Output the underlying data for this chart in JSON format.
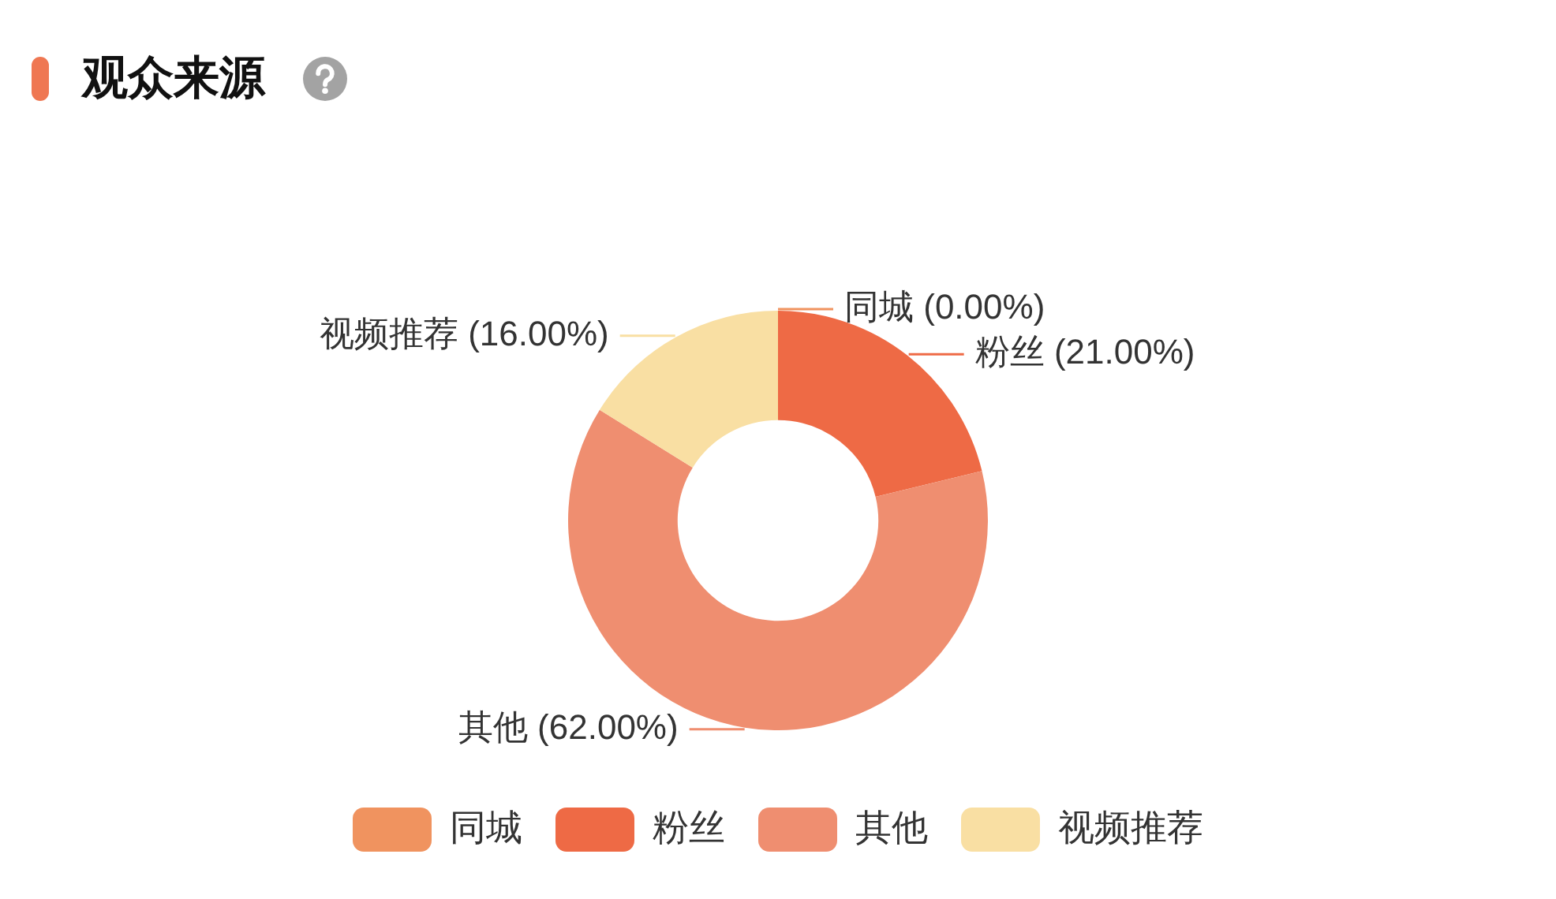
{
  "chart_data": {
    "type": "donut",
    "title": "观众来源",
    "categories": [
      "同城",
      "粉丝",
      "其他",
      "视频推荐"
    ],
    "values": [
      0,
      21,
      62,
      16
    ],
    "colors": [
      "#f0935f",
      "#ee6a45",
      "#ef8e70",
      "#f9dfa3"
    ],
    "value_labels": [
      "同城 (0.00%)",
      "粉丝 (21.00%)",
      "其他 (62.00%)",
      "视频推荐 (16.00%)"
    ],
    "legend": "bottom"
  }
}
